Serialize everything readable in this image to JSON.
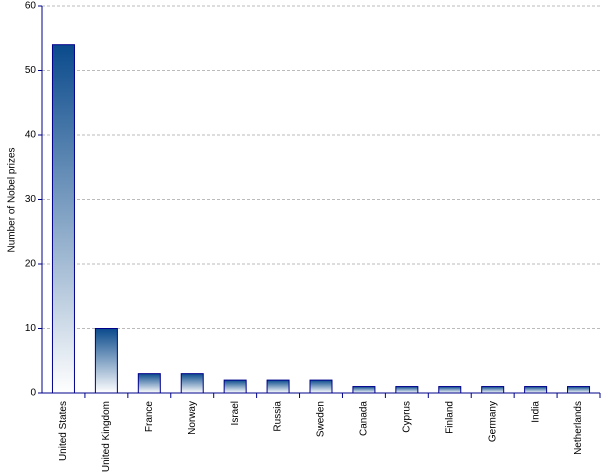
{
  "chart_data": {
    "type": "bar",
    "y_label": "Number of Nobel prizes",
    "categories": [
      "United States",
      "United Kingdom",
      "France",
      "Norway",
      "Israel",
      "Russia",
      "Sweden",
      "Canada",
      "Cyprus",
      "Finland",
      "Germany",
      "India",
      "Netherlands"
    ],
    "values": [
      54,
      10,
      3,
      3,
      2,
      2,
      2,
      1,
      1,
      1,
      1,
      1,
      1
    ],
    "color": "#0a4a8c",
    "ylim": [
      0,
      60
    ],
    "yticks": [
      0,
      10,
      20,
      30,
      40,
      50,
      60
    ],
    "grid": true
  }
}
